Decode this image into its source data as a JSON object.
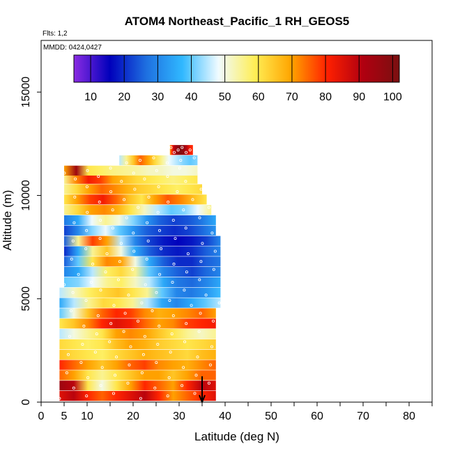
{
  "chart_data": {
    "type": "heatmap",
    "title": "ATOM4 Northeast_Pacific_1 RH_GEOS5",
    "flights_label": "Flts: 1,2",
    "dates_label": "MMDD: 0424,0427",
    "xlabel": "Latitude (deg N)",
    "ylabel": "Altitude (m)",
    "xlim": [
      0,
      85
    ],
    "ylim": [
      0,
      17500
    ],
    "x_ticks": [
      0,
      5,
      10,
      20,
      30,
      40,
      50,
      60,
      70,
      80
    ],
    "y_ticks": [
      0,
      5000,
      10000,
      15000
    ],
    "colorbar": {
      "min": 5,
      "max": 102,
      "ticks": [
        10,
        20,
        30,
        40,
        50,
        60,
        70,
        80,
        90,
        100
      ],
      "colors": [
        "#8a2be2",
        "#0000bb",
        "#1e6fe0",
        "#30b8ff",
        "#f0fbff",
        "#ffee55",
        "#ffa500",
        "#ff2000",
        "#b00010",
        "#7a1010"
      ]
    },
    "arrow_latitude": 35,
    "layers": [
      {
        "alt": 300,
        "lat_range": [
          4,
          38
        ],
        "rh": [
          85,
          90,
          80,
          75,
          80,
          85,
          90,
          80,
          70,
          75,
          80,
          85
        ]
      },
      {
        "alt": 800,
        "lat_range": [
          4,
          38
        ],
        "rh": [
          95,
          90,
          60,
          50,
          60,
          70,
          80,
          75,
          70,
          80,
          90,
          85
        ]
      },
      {
        "alt": 1300,
        "lat_range": [
          4,
          38
        ],
        "rh": [
          75,
          70,
          60,
          55,
          60,
          65,
          70,
          70,
          65,
          70,
          75,
          75
        ]
      },
      {
        "alt": 1800,
        "lat_range": [
          4,
          38
        ],
        "rh": [
          80,
          75,
          70,
          65,
          70,
          75,
          78,
          72,
          70,
          68,
          72,
          75
        ]
      },
      {
        "alt": 2300,
        "lat_range": [
          4,
          38
        ],
        "rh": [
          65,
          62,
          60,
          58,
          62,
          65,
          68,
          66,
          64,
          62,
          66,
          68
        ]
      },
      {
        "alt": 2800,
        "lat_range": [
          4,
          38
        ],
        "rh": [
          62,
          60,
          58,
          60,
          66,
          70,
          68,
          64,
          62,
          60,
          62,
          64
        ]
      },
      {
        "alt": 3300,
        "lat_range": [
          4,
          38
        ],
        "rh": [
          45,
          50,
          55,
          60,
          70,
          72,
          70,
          65,
          60,
          55,
          52,
          55
        ]
      },
      {
        "alt": 3800,
        "lat_range": [
          4,
          38
        ],
        "rh": [
          60,
          65,
          72,
          80,
          85,
          82,
          75,
          70,
          72,
          78,
          80,
          82
        ]
      },
      {
        "alt": 4300,
        "lat_range": [
          4,
          38
        ],
        "rh": [
          40,
          50,
          65,
          75,
          80,
          78,
          72,
          68,
          70,
          72,
          75,
          70
        ]
      },
      {
        "alt": 4800,
        "lat_range": [
          4,
          39
        ],
        "rh": [
          35,
          45,
          55,
          62,
          60,
          55,
          45,
          35,
          30,
          35,
          40,
          45
        ]
      },
      {
        "alt": 5300,
        "lat_range": [
          4,
          39
        ],
        "rh": [
          45,
          52,
          58,
          62,
          65,
          60,
          55,
          40,
          30,
          28,
          32,
          38
        ]
      },
      {
        "alt": 5800,
        "lat_range": [
          5,
          39
        ],
        "rh": [
          40,
          42,
          48,
          55,
          58,
          52,
          45,
          35,
          28,
          26,
          30,
          35
        ]
      },
      {
        "alt": 6300,
        "lat_range": [
          5,
          39
        ],
        "rh": [
          30,
          35,
          45,
          58,
          62,
          55,
          40,
          30,
          25,
          22,
          26,
          30
        ]
      },
      {
        "alt": 6800,
        "lat_range": [
          5,
          39
        ],
        "rh": [
          25,
          40,
          60,
          72,
          70,
          50,
          35,
          25,
          20,
          20,
          25,
          28
        ]
      },
      {
        "alt": 7300,
        "lat_range": [
          5,
          39
        ],
        "rh": [
          20,
          35,
          55,
          65,
          50,
          35,
          25,
          20,
          18,
          20,
          25,
          30
        ]
      },
      {
        "alt": 7800,
        "lat_range": [
          5,
          39
        ],
        "rh": [
          25,
          55,
          78,
          70,
          45,
          30,
          22,
          18,
          16,
          18,
          22,
          30
        ]
      },
      {
        "alt": 8300,
        "lat_range": [
          5,
          38
        ],
        "rh": [
          22,
          30,
          42,
          48,
          40,
          32,
          25,
          22,
          20,
          22,
          26,
          32
        ]
      },
      {
        "alt": 8800,
        "lat_range": [
          5,
          38
        ],
        "rh": [
          28,
          35,
          48,
          55,
          50,
          42,
          32,
          25,
          22,
          24,
          28,
          35
        ]
      },
      {
        "alt": 9300,
        "lat_range": [
          5,
          37
        ],
        "rh": [
          55,
          62,
          70,
          72,
          68,
          60,
          52,
          45,
          40,
          42,
          48,
          55
        ]
      },
      {
        "alt": 9800,
        "lat_range": [
          5,
          36
        ],
        "rh": [
          60,
          70,
          78,
          82,
          75,
          66,
          60,
          70,
          76,
          72,
          66,
          60
        ]
      },
      {
        "alt": 10300,
        "lat_range": [
          5,
          35
        ],
        "rh": [
          55,
          62,
          70,
          75,
          72,
          68,
          64,
          62,
          60,
          58,
          60,
          62
        ]
      },
      {
        "alt": 10800,
        "lat_range": [
          5,
          34
        ],
        "rh": [
          55,
          72,
          82,
          78,
          70,
          66,
          62,
          60,
          58,
          56,
          58,
          60
        ]
      },
      {
        "alt": 11200,
        "lat_range": [
          5,
          34
        ],
        "rh": [
          70,
          95,
          60,
          58,
          56,
          55,
          54,
          52,
          52,
          50,
          50,
          52
        ]
      },
      {
        "alt": 11700,
        "lat_range": [
          17,
          34
        ],
        "rh": [
          45,
          55,
          65,
          75,
          70,
          62,
          55,
          48,
          45,
          42,
          40,
          42
        ]
      },
      {
        "alt": 12200,
        "lat_range": [
          28,
          33
        ],
        "rh": [
          70,
          80,
          90,
          95,
          98,
          100,
          98,
          95,
          90,
          85,
          80,
          80
        ]
      }
    ]
  }
}
